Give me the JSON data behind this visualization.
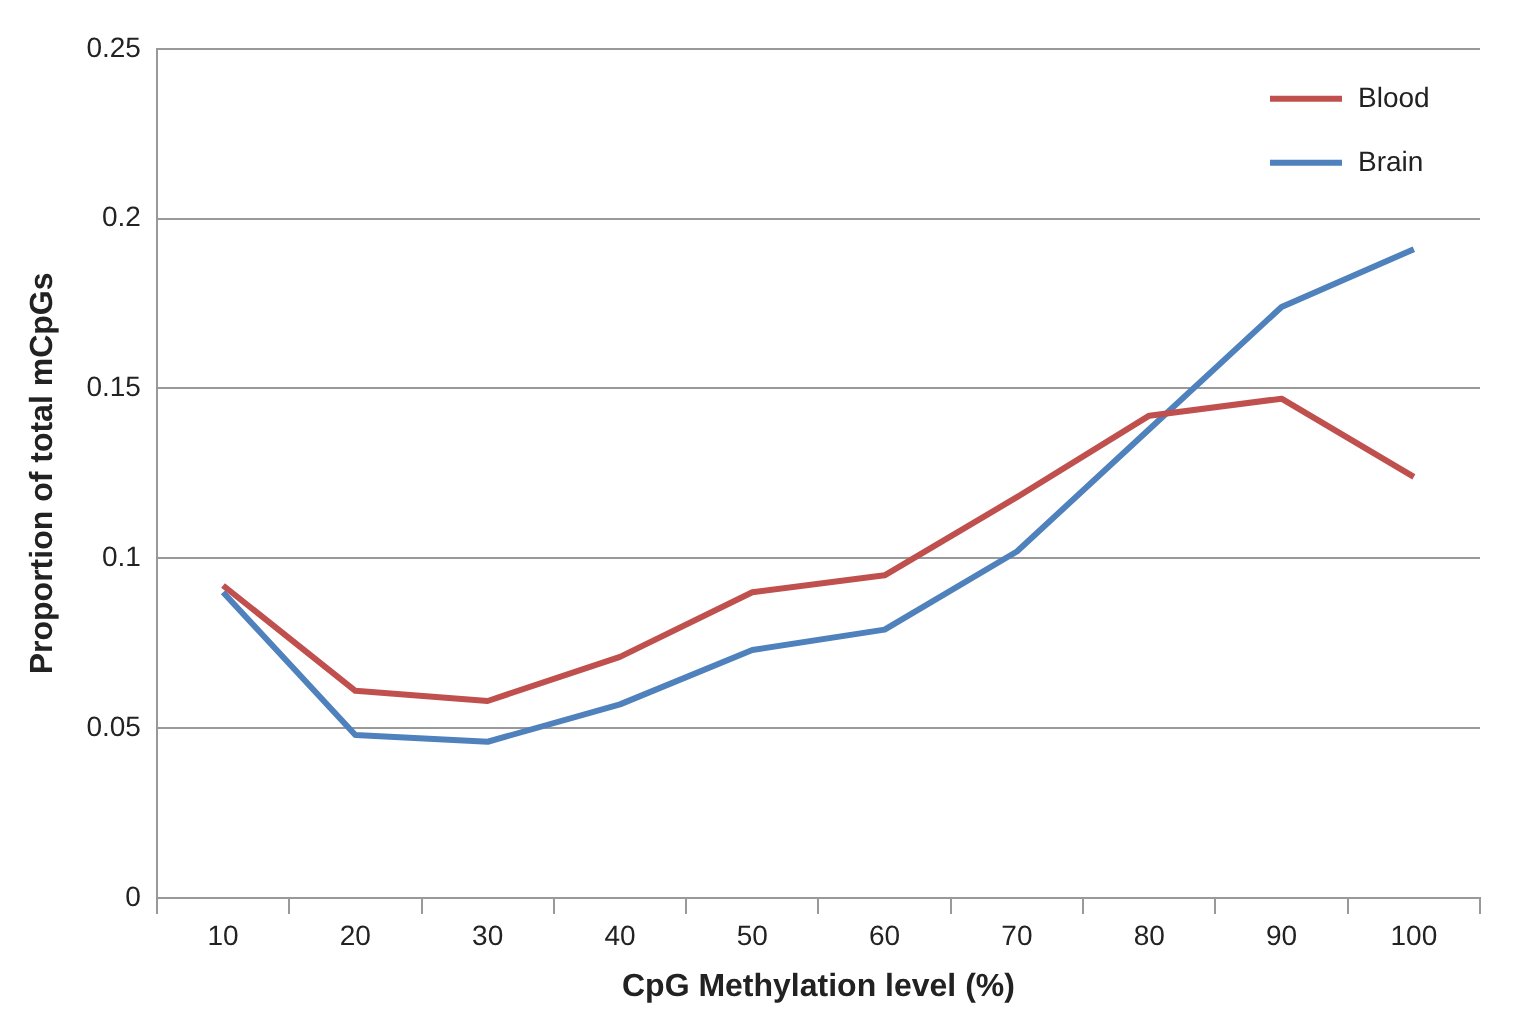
{
  "chart_data": {
    "type": "line",
    "xlabel": "CpG Methylation level (%)",
    "ylabel": "Proportion of total mCpGs",
    "categories": [
      "10",
      "20",
      "30",
      "40",
      "50",
      "60",
      "70",
      "80",
      "90",
      "100"
    ],
    "series": [
      {
        "name": "Blood",
        "color": "#c0504d",
        "values": [
          0.092,
          0.061,
          0.058,
          0.071,
          0.09,
          0.095,
          0.118,
          0.142,
          0.147,
          0.124
        ]
      },
      {
        "name": "Brain",
        "color": "#4f81bd",
        "values": [
          0.09,
          0.048,
          0.046,
          0.057,
          0.073,
          0.079,
          0.102,
          0.138,
          0.174,
          0.191
        ]
      }
    ],
    "ylim": [
      0,
      0.25
    ],
    "yticks": [
      0,
      0.05,
      0.1,
      0.15,
      0.2,
      0.25
    ],
    "grid": "y",
    "legend": "top right",
    "marker": "none",
    "line_style": "solid"
  }
}
